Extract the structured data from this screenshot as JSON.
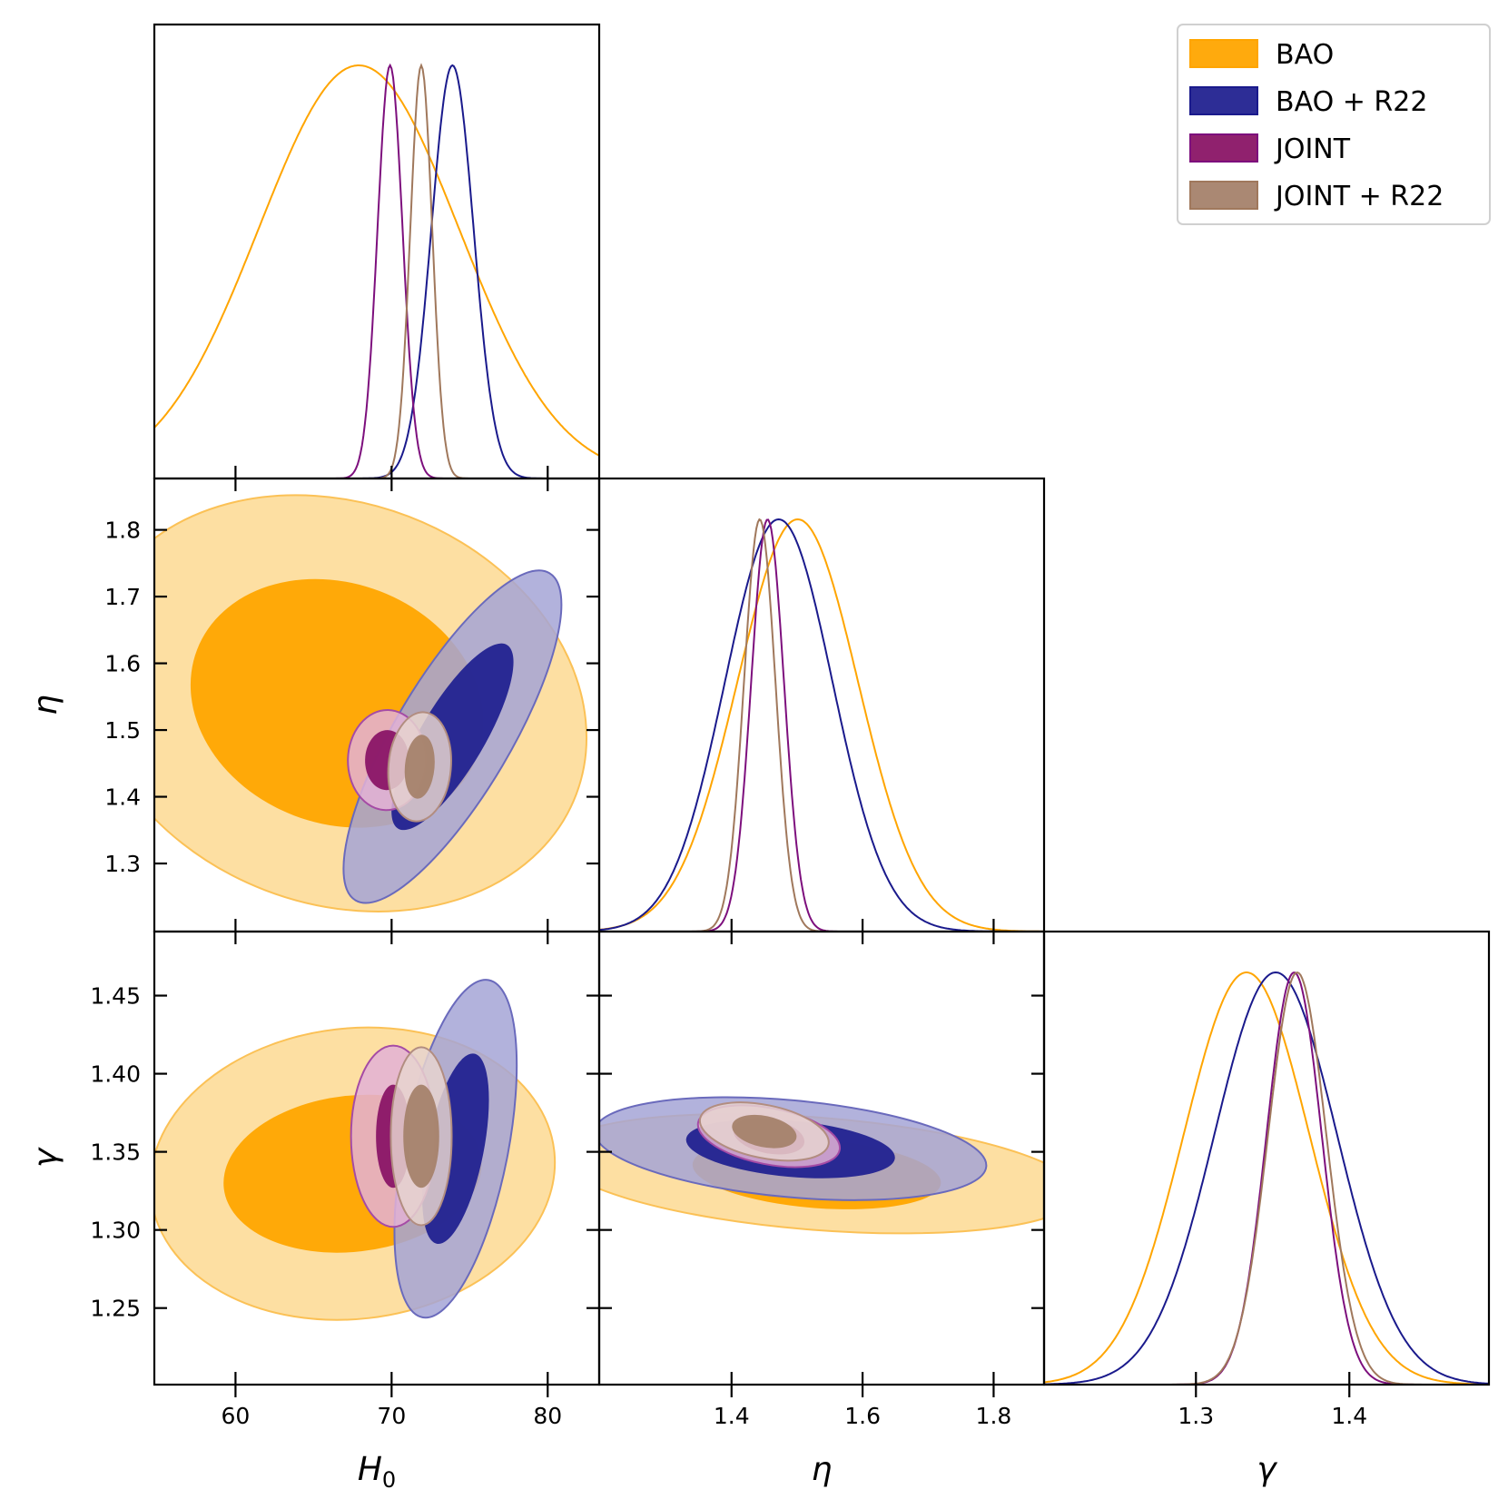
{
  "chart_data": {
    "type": "corner",
    "parameters": [
      {
        "name": "H0",
        "label_main": "H",
        "label_sub": "0",
        "range": [
          54.8,
          83.3
        ],
        "ticks": [
          60,
          70,
          80
        ],
        "tick_labels": [
          "60",
          "70",
          "80"
        ]
      },
      {
        "name": "eta",
        "label_main": "η",
        "label_sub": "",
        "range": [
          1.198,
          1.877
        ],
        "ticks": [
          1.3,
          1.4,
          1.5,
          1.6,
          1.7,
          1.8
        ],
        "tick_labels": [
          "1.3",
          "1.4",
          "1.5",
          "1.6",
          "1.7",
          "1.8"
        ],
        "bottom_ticks": [
          1.4,
          1.6,
          1.8
        ],
        "bottom_tick_labels": [
          "1.4",
          "1.6",
          "1.8"
        ]
      },
      {
        "name": "gamma",
        "label_main": "γ",
        "label_sub": "",
        "range": [
          1.201,
          1.491
        ],
        "ticks": [
          1.25,
          1.3,
          1.35,
          1.4,
          1.45
        ],
        "tick_labels": [
          "1.25",
          "1.30",
          "1.35",
          "1.40",
          "1.45"
        ],
        "bottom_ticks": [
          1.3,
          1.4
        ],
        "bottom_tick_labels": [
          "1.3",
          "1.4"
        ]
      }
    ],
    "series": [
      {
        "name": "BAO",
        "color": "#FFA500",
        "fill_inner": "#FFA500",
        "fill_outer": "#FDD992",
        "edge": "#FBC156",
        "h0": {
          "mean": 67.9,
          "sigma": 6.4
        },
        "eta": {
          "mean": 1.501,
          "sigma": 0.092
        },
        "gamma": {
          "mean": 1.333,
          "sigma": 0.041
        },
        "contours": {
          "eta_h0": {
            "c": [
              66.5,
              1.54
            ],
            "r1": [
              9.6,
              0.18
            ],
            "r2": [
              16.4,
              0.3
            ],
            "rot": -0.49
          },
          "gamma_h0": {
            "c": [
              67.5,
              1.336
            ],
            "r1": [
              8.3,
              0.05
            ],
            "r2": [
              13.0,
              0.093
            ],
            "rot": 0.16
          },
          "gamma_eta": {
            "c": [
              1.53,
              1.336
            ],
            "r1": [
              0.19,
              0.022
            ],
            "r2": [
              0.4,
              0.036
            ],
            "rot": -0.363
          }
        }
      },
      {
        "name": "BAO + R22",
        "color": "#1A1A8C",
        "fill_inner": "#222290",
        "fill_outer": "#A4A4D6",
        "edge": "#6A6ABC",
        "h0": {
          "mean": 73.9,
          "sigma": 1.35
        },
        "eta": {
          "mean": 1.472,
          "sigma": 0.082
        },
        "gamma": {
          "mean": 1.352,
          "sigma": 0.04
        },
        "contours": {
          "eta_h0": {
            "c": [
              73.9,
              1.49
            ],
            "r1": [
              2.05,
              0.16
            ],
            "r2": [
              3.7,
              0.285
            ],
            "rot": -0.18
          },
          "gamma_h0": {
            "c": [
              74.1,
              1.352
            ],
            "r1": [
              1.8,
              0.062
            ],
            "r2": [
              3.35,
              0.11
            ],
            "rot": -0.06
          },
          "gamma_eta": {
            "c": [
              1.49,
              1.352
            ],
            "r1": [
              0.16,
              0.018
            ],
            "r2": [
              0.3,
              0.031
            ],
            "rot": -0.37
          }
        }
      },
      {
        "name": "JOINT",
        "color": "#7D0F7D",
        "fill_inner": "#8A1566",
        "fill_outer": "#E3B2D6",
        "edge": "#A54BA5",
        "h0": {
          "mean": 69.9,
          "sigma": 0.8
        },
        "eta": {
          "mean": 1.455,
          "sigma": 0.025
        },
        "gamma": {
          "mean": 1.364,
          "sigma": 0.018
        },
        "contours": {
          "eta_h0": {
            "c": [
              69.7,
              1.455
            ],
            "r1": [
              1.4,
              0.045
            ],
            "r2": [
              2.5,
              0.075
            ],
            "rot": -0.02
          },
          "gamma_h0": {
            "c": [
              70.1,
              1.36
            ],
            "r1": [
              1.1,
              0.033
            ],
            "r2": [
              2.7,
              0.058
            ],
            "rot": 0.0
          },
          "gamma_eta": {
            "c": [
              1.457,
              1.36
            ],
            "r1": [
              0.055,
              0.011
            ],
            "r2": [
              0.11,
              0.018
            ],
            "rot": -0.5
          }
        }
      },
      {
        "name": "JOINT + R22",
        "color": "#A0785C",
        "fill_inner": "#A5826C",
        "fill_outer": "#E6D4CF",
        "edge": "#B28D80",
        "h0": {
          "mean": 71.9,
          "sigma": 0.7
        },
        "eta": {
          "mean": 1.443,
          "sigma": 0.024
        },
        "gamma": {
          "mean": 1.366,
          "sigma": 0.019
        },
        "contours": {
          "eta_h0": {
            "c": [
              71.8,
              1.445
            ],
            "r1": [
              0.95,
              0.048
            ],
            "r2": [
              2.0,
              0.082
            ],
            "rot": -0.05
          },
          "gamma_h0": {
            "c": [
              71.9,
              1.36
            ],
            "r1": [
              1.15,
              0.033
            ],
            "r2": [
              1.95,
              0.057
            ],
            "rot": 0.0
          },
          "gamma_eta": {
            "c": [
              1.45,
              1.363
            ],
            "r1": [
              0.05,
              0.01
            ],
            "r2": [
              0.1,
              0.017
            ],
            "rot": -0.5
          }
        }
      }
    ],
    "legend": {
      "placement": "top-right",
      "entries": [
        "BAO",
        "BAO + R22",
        "JOINT",
        "JOINT + R22"
      ]
    },
    "grid": false
  }
}
